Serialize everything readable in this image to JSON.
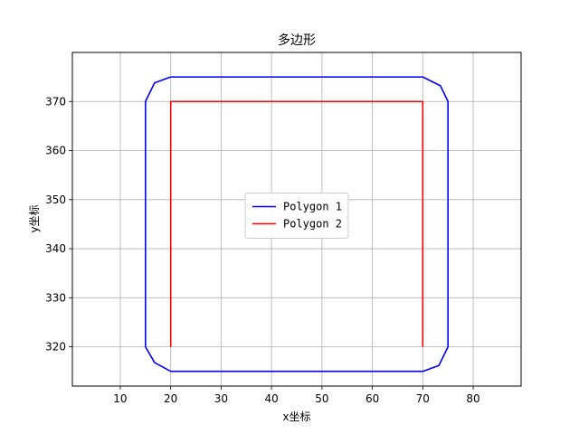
{
  "chart_data": {
    "type": "line",
    "title": "多边形",
    "xlabel": "x坐标",
    "ylabel": "y坐标",
    "xlim": [
      0.5,
      89.5
    ],
    "ylim": [
      312,
      380
    ],
    "xticks": [
      10,
      20,
      30,
      40,
      50,
      60,
      70,
      80
    ],
    "yticks": [
      320,
      330,
      340,
      350,
      360,
      370
    ],
    "grid": true,
    "legend_position": "center",
    "series": [
      {
        "name": "Polygon 1",
        "color": "#0000ff",
        "x": [
          20,
          70,
          73.5,
          75,
          75,
          73.2,
          70,
          20,
          16.8,
          15,
          15,
          16.8,
          20
        ],
        "y": [
          375,
          375,
          373.2,
          370,
          320,
          316.2,
          315,
          315,
          316.8,
          320,
          370,
          373.8,
          375
        ]
      },
      {
        "name": "Polygon 2",
        "color": "#ff0000",
        "x": [
          20,
          20,
          70,
          70
        ],
        "y": [
          320,
          370,
          370,
          320
        ]
      }
    ]
  }
}
